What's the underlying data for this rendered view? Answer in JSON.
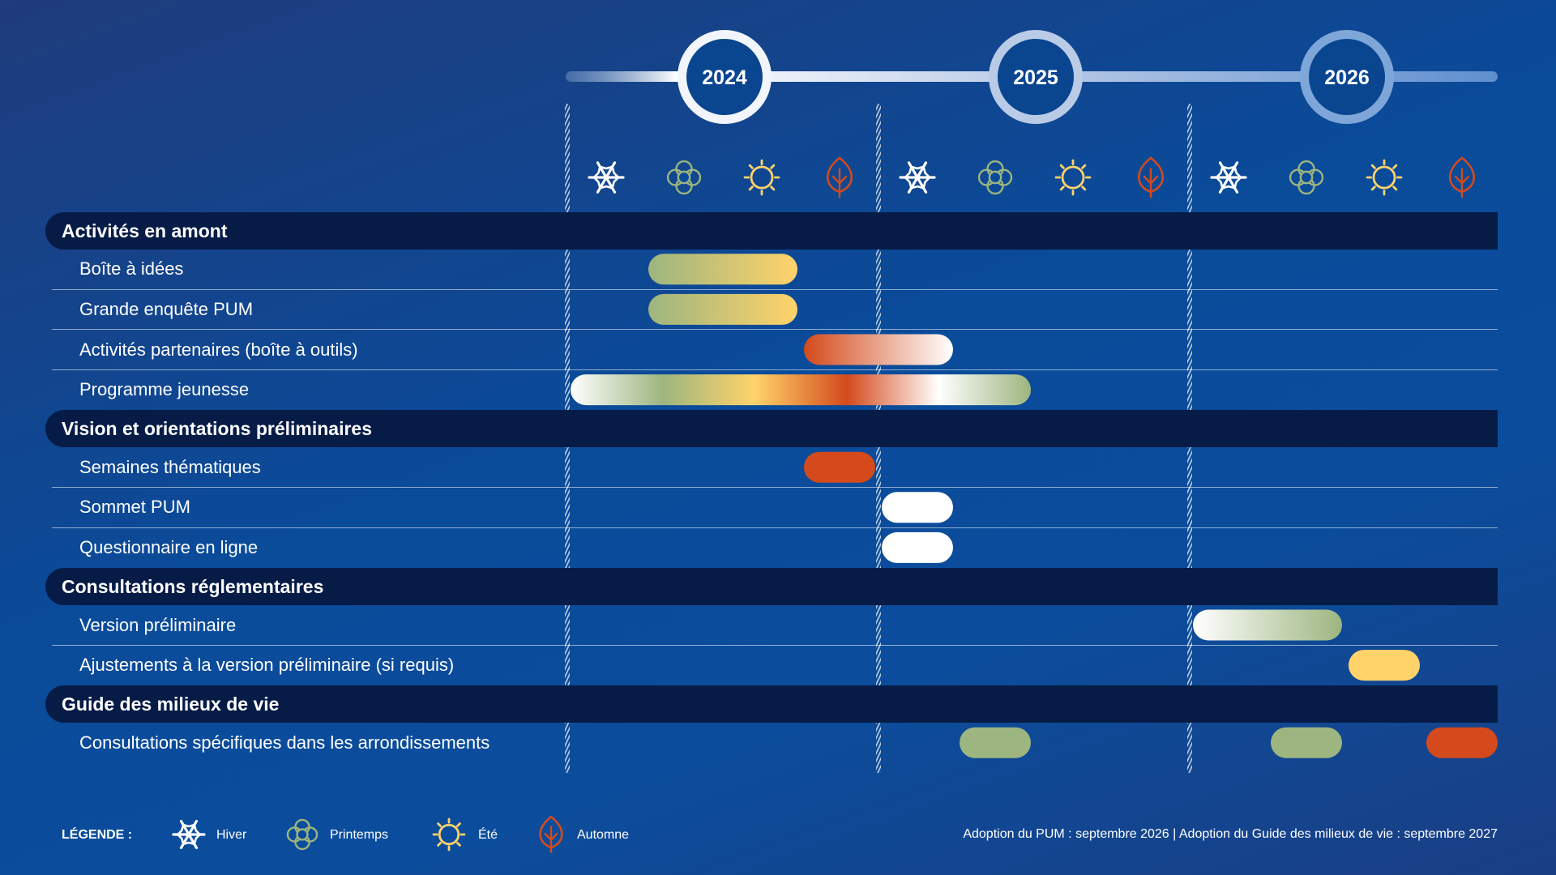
{
  "chart_data": {
    "type": "gantt",
    "years": [
      "2024",
      "2025",
      "2026"
    ],
    "seasons": [
      {
        "name": "Hiver",
        "icon": "snowflake-icon",
        "color": "#ffffff"
      },
      {
        "name": "Printemps",
        "icon": "flower-icon",
        "color": "#9db57f"
      },
      {
        "name": "Été",
        "icon": "sun-icon",
        "color": "#ffd36a"
      },
      {
        "name": "Automne",
        "icon": "leaf-icon",
        "color": "#d44a1c"
      }
    ],
    "sections": [
      {
        "title": "Activités en amont",
        "rows": [
          {
            "label": "Boîte à idées",
            "bars": [
              {
                "start": "2024-Printemps",
                "end": "2024-Été",
                "colors": [
                  "#9db57f",
                  "#ffd36a"
                ]
              }
            ]
          },
          {
            "label": "Grande enquête PUM",
            "bars": [
              {
                "start": "2024-Printemps",
                "end": "2024-Été",
                "colors": [
                  "#9db57f",
                  "#ffd36a"
                ]
              }
            ]
          },
          {
            "label": "Activités partenaires (boîte à outils)",
            "bars": [
              {
                "start": "2024-Automne",
                "end": "2025-Hiver",
                "colors": [
                  "#d44a1c",
                  "#ffffff"
                ]
              }
            ]
          },
          {
            "label": "Programme jeunesse",
            "bars": [
              {
                "start": "2024-Hiver",
                "end": "2025-Printemps",
                "colors": [
                  "#ffffff",
                  "#9db57f",
                  "#ffd36a",
                  "#d44a1c",
                  "#ffffff",
                  "#9db57f"
                ]
              }
            ]
          }
        ]
      },
      {
        "title": "Vision et orientations préliminaires",
        "rows": [
          {
            "label": "Semaines thématiques",
            "bars": [
              {
                "start": "2024-Automne",
                "end": "2024-Automne",
                "colors": [
                  "#d44a1c"
                ]
              }
            ]
          },
          {
            "label": "Sommet PUM",
            "bars": [
              {
                "start": "2025-Hiver",
                "end": "2025-Hiver",
                "colors": [
                  "#ffffff"
                ]
              }
            ]
          },
          {
            "label": "Questionnaire en ligne",
            "bars": [
              {
                "start": "2025-Hiver",
                "end": "2025-Hiver",
                "colors": [
                  "#ffffff"
                ]
              }
            ]
          }
        ]
      },
      {
        "title": "Consultations réglementaires",
        "rows": [
          {
            "label": "Version préliminaire",
            "bars": [
              {
                "start": "2026-Hiver",
                "end": "2026-Printemps",
                "colors": [
                  "#ffffff",
                  "#9db57f"
                ]
              }
            ]
          },
          {
            "label": "Ajustements à la version préliminaire (si requis)",
            "bars": [
              {
                "start": "2026-Été",
                "end": "2026-Été",
                "colors": [
                  "#ffd36a"
                ]
              }
            ]
          }
        ]
      },
      {
        "title": "Guide des milieux de vie",
        "rows": [
          {
            "label": "Consultations spécifiques dans les arrondissements",
            "bars": [
              {
                "start": "2025-Printemps",
                "end": "2025-Printemps",
                "colors": [
                  "#9db57f"
                ]
              },
              {
                "start": "2026-Printemps",
                "end": "2026-Printemps",
                "colors": [
                  "#9db57f"
                ]
              },
              {
                "start": "2026-Automne",
                "end": "2026-Automne",
                "colors": [
                  "#d44a1c"
                ]
              }
            ]
          }
        ]
      }
    ]
  },
  "legend": {
    "title": "LÉGENDE :",
    "items": [
      "Hiver",
      "Printemps",
      "Été",
      "Automne"
    ]
  },
  "footnote": "Adoption du PUM : septembre 2026 | Adoption du Guide des milieux de vie : septembre 2027"
}
